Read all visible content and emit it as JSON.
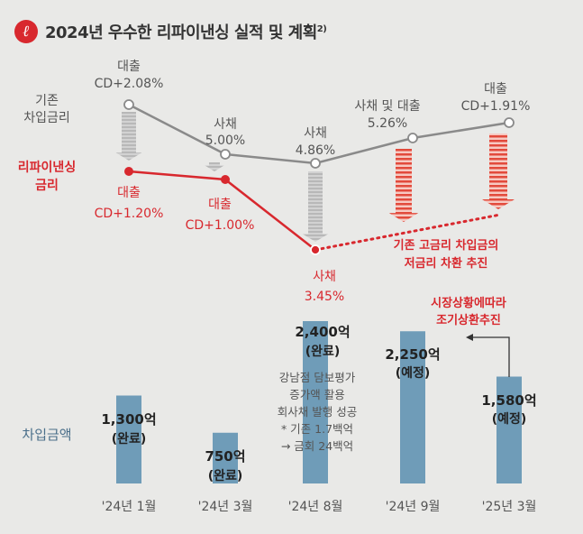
{
  "title": "2024년 우수한 리파이낸싱 실적 및 계획",
  "title_sup": "2)",
  "colors": {
    "gray": "#8a8a8a",
    "red": "#d8282e",
    "bar": "#6f9cb8",
    "arrow_red": "#e24a3c",
    "arrow_gray": "#b3b3b3",
    "text": "#444444"
  },
  "chart_data": {
    "type": "line+bar",
    "categories": [
      "'24년 1월",
      "'24년 3월",
      "'24년 8월",
      "'24년 9월",
      "'25년 3월"
    ],
    "existing_rate": {
      "label_line1": "기존",
      "label_line2": "차입금리",
      "points": [
        {
          "type": "대출",
          "value": "CD+2.08%"
        },
        {
          "type": "사채",
          "value": "5.00%"
        },
        {
          "type": "사채",
          "value": "4.86%"
        },
        {
          "type": "사채 및 대출",
          "value": "5.26%"
        },
        {
          "type": "대출",
          "value": "CD+1.91%"
        }
      ]
    },
    "refinancing_rate": {
      "label_line1": "리파이낸싱",
      "label_line2": "금리",
      "points": [
        {
          "type": "대출",
          "value": "CD+1.20%"
        },
        {
          "type": "대출",
          "value": "CD+1.00%"
        },
        {
          "type": "사채",
          "value": "3.45%"
        }
      ],
      "plan_note_line1": "기존 고금리 차입금의",
      "plan_note_line2": "저금리 차환 추진"
    },
    "borrowing": {
      "label": "차입금액",
      "values": [
        1300,
        750,
        2400,
        2250,
        1580
      ],
      "value_labels": [
        "1,300억",
        "750억",
        "2,400억",
        "2,250억",
        "1,580억"
      ],
      "status": [
        "(완료)",
        "(완료)",
        "(완료)",
        "(예정)",
        "(예정)"
      ]
    },
    "annotation": [
      "강남점 담보평가",
      "증가액 활용",
      "회사채 발행 성공",
      "* 기존 1.7백억",
      "→ 금회 24백억"
    ],
    "shift_note_line1": "시장상황에따라",
    "shift_note_line2": "조기상환추진"
  }
}
